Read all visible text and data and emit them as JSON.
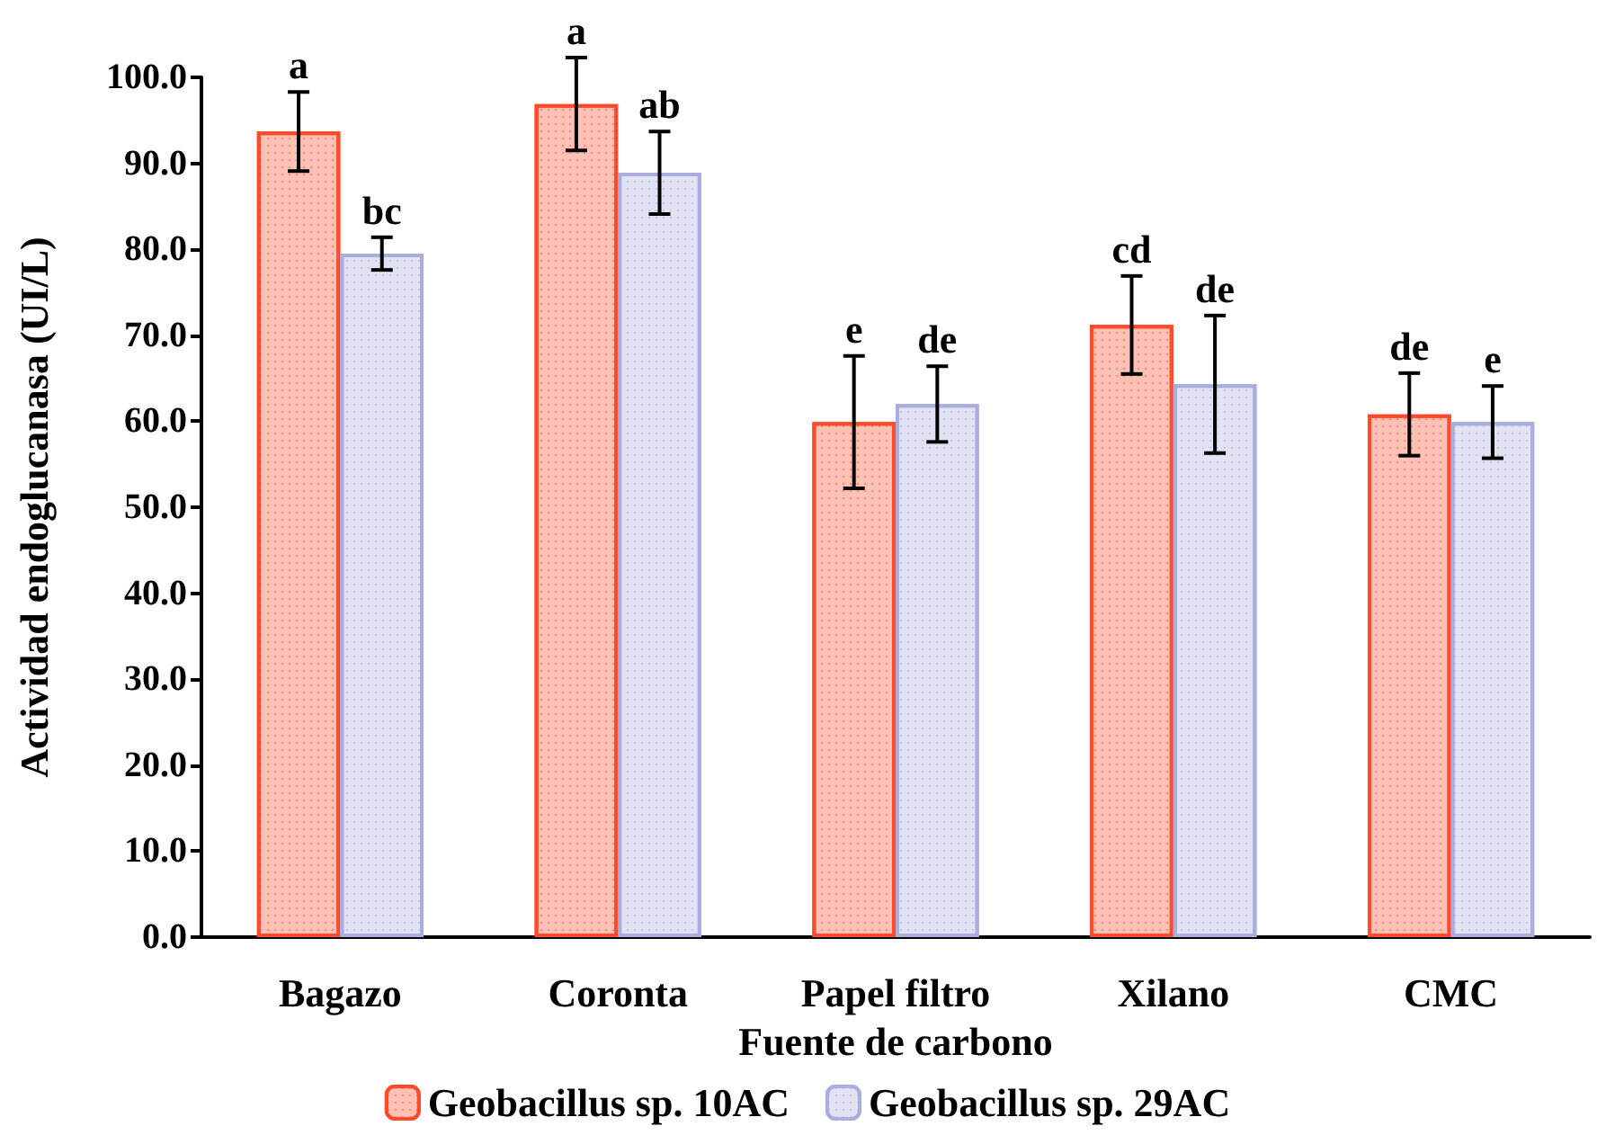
{
  "chart_data": {
    "type": "bar",
    "xlabel": "Fuente de carbono",
    "ylabel": "Actividad endoglucanasa (UI/L)",
    "categories": [
      "Bagazo",
      "Coronta",
      "Papel filtro",
      "Xilano",
      "CMC"
    ],
    "series": [
      {
        "name": "Geobacillus sp. 10AC",
        "color": "#ff4b2b",
        "values": [
          93.7,
          96.9,
          59.9,
          71.2,
          60.8
        ],
        "errors": [
          4.6,
          5.4,
          7.7,
          5.7,
          4.8
        ]
      },
      {
        "name": "Geobacillus sp. 29AC",
        "color": "#a9aedf",
        "values": [
          79.5,
          88.9,
          62.0,
          64.3,
          59.9
        ],
        "errors": [
          1.9,
          4.8,
          4.4,
          8.0,
          4.2
        ]
      }
    ],
    "ylim": [
      0,
      100
    ],
    "yticks": [
      {
        "value": 0,
        "label": "0.0"
      },
      {
        "value": 10,
        "label": "10.0"
      },
      {
        "value": 20,
        "label": "20.0"
      },
      {
        "value": 30,
        "label": "30.0"
      },
      {
        "value": 40,
        "label": "40.0"
      },
      {
        "value": 50,
        "label": "50.0"
      },
      {
        "value": 60,
        "label": "60.0"
      },
      {
        "value": 70,
        "label": "70.0"
      },
      {
        "value": 80,
        "label": "80.0"
      },
      {
        "value": 90,
        "label": "90.0"
      },
      {
        "value": 100,
        "label": "100.0"
      }
    ],
    "annotations": [
      "a",
      "bc",
      "a",
      "ab",
      "e",
      "de",
      "cd",
      "de",
      "de",
      "e"
    ],
    "grid": false,
    "legend": "bottom"
  }
}
